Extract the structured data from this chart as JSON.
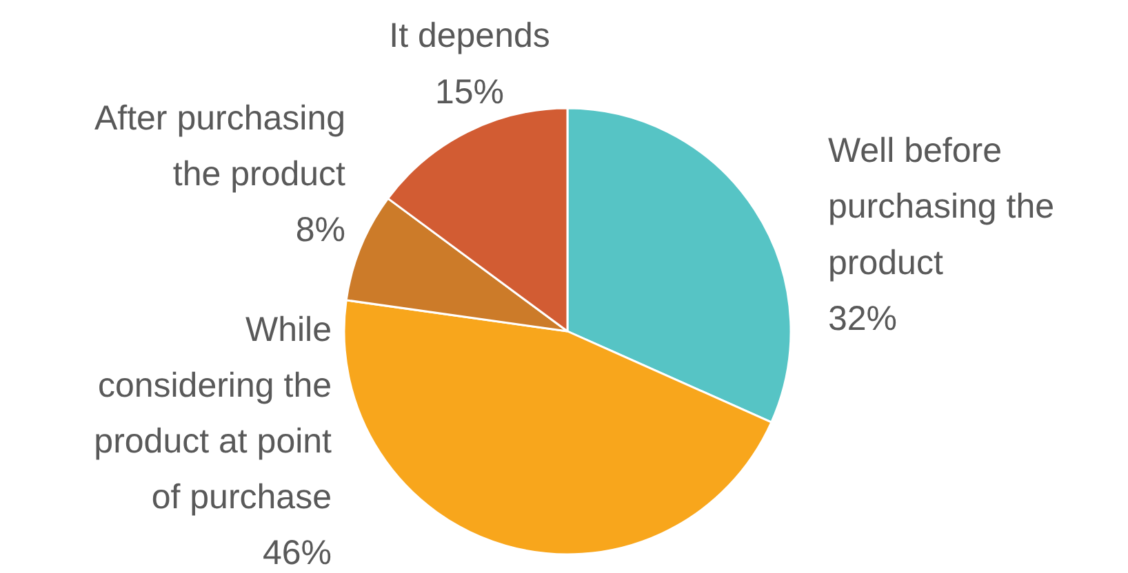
{
  "chart_data": {
    "type": "pie",
    "categories": [
      "Well before purchasing the product",
      "While considering the product at point of purchase",
      "After purchasing the product",
      "It depends"
    ],
    "values": [
      32,
      46,
      8,
      15
    ],
    "value_labels": [
      "32%",
      "46%",
      "8%",
      "15%"
    ],
    "colors": [
      "#56c4c5",
      "#f8a61c",
      "#cc7b29",
      "#d25c33"
    ]
  }
}
